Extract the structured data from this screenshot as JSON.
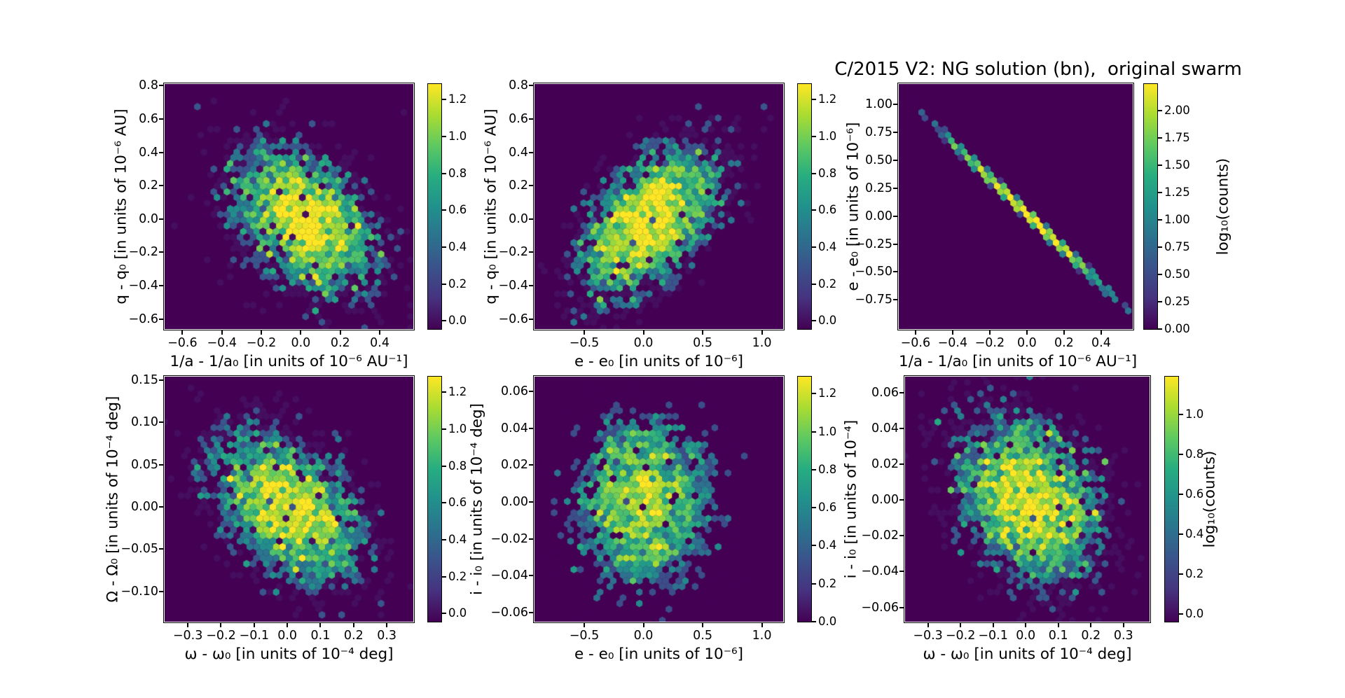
{
  "figure": {
    "title": "C/2015 V2: NG solution (bn),  original swarm",
    "background": "#ffffff",
    "colors": {
      "axes": "#000000",
      "hexbin_zero_background": "#440154",
      "viridis_stops": [
        "#440154",
        "#46327e",
        "#3b528b",
        "#2c728e",
        "#21918c",
        "#27ad81",
        "#5ec962",
        "#aadc32",
        "#fde725"
      ]
    }
  },
  "chart_data": [
    {
      "type": "hexbin",
      "panel": "top-left",
      "title": "",
      "xlabel": "1/a - 1/a₀ [in units of 10⁻⁶ AU⁻¹]",
      "ylabel": "q - q₀ [in units of 10⁻⁶ AU]",
      "xlim": [
        -0.69,
        0.57
      ],
      "ylim": [
        -0.66,
        0.81
      ],
      "xticks": [
        -0.6,
        -0.4,
        -0.2,
        0.0,
        0.2,
        0.4
      ],
      "xtick_labels": [
        "−0.6",
        "−0.4",
        "−0.2",
        "0.0",
        "0.2",
        "0.4"
      ],
      "yticks": [
        0.8,
        0.6,
        0.4,
        0.2,
        0.0,
        -0.2,
        -0.4,
        -0.6
      ],
      "ytick_labels": [
        "0.8",
        "0.6",
        "0.4",
        "0.2",
        "0.0",
        "−0.2",
        "−0.4",
        "−0.6"
      ],
      "colorbar": {
        "ticks": [
          0.0,
          0.2,
          0.4,
          0.6,
          0.8,
          1.0,
          1.2
        ],
        "tick_labels": [
          "0.0",
          "0.2",
          "0.4",
          "0.6",
          "0.8",
          "1.0",
          "1.2"
        ],
        "vmin": -0.045,
        "vmax": 1.285,
        "label": ""
      },
      "distribution": {
        "kind": "gaussian",
        "n": 4200,
        "center": [
          0.02,
          -0.01
        ],
        "sigma": [
          0.185,
          0.225
        ],
        "rho": -0.42,
        "seed": 101
      }
    },
    {
      "type": "hexbin",
      "panel": "top-middle",
      "title": "",
      "xlabel": "e - e₀ [in units of 10⁻⁶]",
      "ylabel": "q - q₀ [in units of 10⁻⁶ AU]",
      "xlim": [
        -0.92,
        1.18
      ],
      "ylim": [
        -0.66,
        0.81
      ],
      "xticks": [
        -0.5,
        0.0,
        0.5,
        1.0
      ],
      "xtick_labels": [
        "−0.5",
        "0.0",
        "0.5",
        "1.0"
      ],
      "yticks": [
        0.8,
        0.6,
        0.4,
        0.2,
        0.0,
        -0.2,
        -0.4,
        -0.6
      ],
      "ytick_labels": [
        "0.8",
        "0.6",
        "0.4",
        "0.2",
        "0.0",
        "−0.2",
        "−0.4",
        "−0.6"
      ],
      "colorbar": {
        "ticks": [
          0.0,
          0.2,
          0.4,
          0.6,
          0.8,
          1.0,
          1.2
        ],
        "tick_labels": [
          "0.0",
          "0.2",
          "0.4",
          "0.6",
          "0.8",
          "1.0",
          "1.2"
        ],
        "vmin": -0.045,
        "vmax": 1.285,
        "label": ""
      },
      "distribution": {
        "kind": "gaussian",
        "n": 4200,
        "center": [
          0.05,
          -0.01
        ],
        "sigma": [
          0.3,
          0.225
        ],
        "rho": 0.5,
        "seed": 202
      }
    },
    {
      "type": "hexbin",
      "panel": "top-right",
      "title": "C/2015 V2: NG solution (bn),  original swarm",
      "xlabel": "1/a - 1/a₀ [in units of 10⁻⁶ AU⁻¹]",
      "ylabel": "e - e₀ [in units of 10⁻⁶]",
      "xlim": [
        -0.69,
        0.57
      ],
      "ylim": [
        -1.01,
        1.18
      ],
      "xticks": [
        -0.6,
        -0.4,
        -0.2,
        0.0,
        0.2,
        0.4
      ],
      "xtick_labels": [
        "−0.6",
        "−0.4",
        "−0.2",
        "0.0",
        "0.2",
        "0.4"
      ],
      "yticks": [
        1.0,
        0.75,
        0.5,
        0.25,
        0.0,
        -0.25,
        -0.5,
        -0.75
      ],
      "ytick_labels": [
        "1.00",
        "0.75",
        "0.50",
        "0.25",
        "0.00",
        "−0.25",
        "−0.50",
        "−0.75"
      ],
      "colorbar": {
        "ticks": [
          0.0,
          0.25,
          0.5,
          0.75,
          1.0,
          1.25,
          1.5,
          1.75,
          2.0
        ],
        "tick_labels": [
          "0.00",
          "0.25",
          "0.50",
          "0.75",
          "1.00",
          "1.25",
          "1.50",
          "1.75",
          "2.00"
        ],
        "vmin": 0.0,
        "vmax": 2.24,
        "label": "log₁₀(counts)"
      },
      "distribution": {
        "kind": "line",
        "n": 4200,
        "center": [
          0.0,
          0.02
        ],
        "sigma": [
          0.195,
          0.012
        ],
        "slope": -1.59,
        "seed": 303
      }
    },
    {
      "type": "hexbin",
      "panel": "bottom-left",
      "title": "",
      "xlabel": "ω - ω₀ [in units of 10⁻⁴ deg]",
      "ylabel": "Ω - Ω₀ [in units of 10⁻⁴ deg]",
      "xlim": [
        -0.37,
        0.38
      ],
      "ylim": [
        -0.136,
        0.154
      ],
      "xticks": [
        -0.3,
        -0.2,
        -0.1,
        0.0,
        0.1,
        0.2,
        0.3
      ],
      "xtick_labels": [
        "−0.3",
        "−0.2",
        "−0.1",
        "0.0",
        "0.1",
        "0.2",
        "0.3"
      ],
      "yticks": [
        0.15,
        0.1,
        0.05,
        0.0,
        -0.05,
        -0.1
      ],
      "ytick_labels": [
        "0.15",
        "0.10",
        "0.05",
        "0.00",
        "−0.05",
        "−0.10"
      ],
      "colorbar": {
        "ticks": [
          0.0,
          0.2,
          0.4,
          0.6,
          0.8,
          1.0,
          1.2
        ],
        "tick_labels": [
          "0.0",
          "0.2",
          "0.4",
          "0.6",
          "0.8",
          "1.0",
          "1.2"
        ],
        "vmin": -0.045,
        "vmax": 1.285,
        "label": ""
      },
      "distribution": {
        "kind": "gaussian",
        "n": 4200,
        "center": [
          0.0,
          0.0
        ],
        "sigma": [
          0.115,
          0.047
        ],
        "rho": -0.42,
        "seed": 404
      }
    },
    {
      "type": "hexbin",
      "panel": "bottom-middle",
      "title": "",
      "xlabel": "e - e₀ [in units of 10⁻⁶]",
      "ylabel": "i - i₀ [in units of 10⁻⁴ deg]",
      "xlim": [
        -0.92,
        1.18
      ],
      "ylim": [
        -0.065,
        0.068
      ],
      "xticks": [
        -0.5,
        0.0,
        0.5,
        1.0
      ],
      "xtick_labels": [
        "−0.5",
        "0.0",
        "0.5",
        "1.0"
      ],
      "yticks": [
        0.06,
        0.04,
        0.02,
        0.0,
        -0.02,
        -0.04,
        -0.06
      ],
      "ytick_labels": [
        "0.06",
        "0.04",
        "0.02",
        "0.00",
        "−0.02",
        "−0.04",
        "−0.06"
      ],
      "colorbar": {
        "ticks": [
          0.0,
          0.2,
          0.4,
          0.6,
          0.8,
          1.0,
          1.2
        ],
        "tick_labels": [
          "0.0",
          "0.2",
          "0.4",
          "0.6",
          "0.8",
          "1.0",
          "1.2"
        ],
        "vmin": 0.0,
        "vmax": 1.29,
        "label": ""
      },
      "distribution": {
        "kind": "gaussian",
        "n": 4200,
        "center": [
          0.0,
          0.0
        ],
        "sigma": [
          0.3,
          0.0245
        ],
        "rho": 0.05,
        "seed": 505
      }
    },
    {
      "type": "hexbin",
      "panel": "bottom-right",
      "title": "",
      "xlabel": "ω - ω₀ [in units of 10⁻⁴ deg]",
      "ylabel": "i - i₀ [in units of 10⁻⁴]",
      "xlim": [
        -0.37,
        0.38
      ],
      "ylim": [
        -0.068,
        0.069
      ],
      "xticks": [
        -0.3,
        -0.2,
        -0.1,
        0.0,
        0.1,
        0.2,
        0.3
      ],
      "xtick_labels": [
        "−0.3",
        "−0.2",
        "−0.1",
        "0.0",
        "0.1",
        "0.2",
        "0.3"
      ],
      "yticks": [
        0.06,
        0.04,
        0.02,
        0.0,
        -0.02,
        -0.04,
        -0.06
      ],
      "ytick_labels": [
        "0.06",
        "0.04",
        "0.02",
        "0.00",
        "−0.02",
        "−0.04",
        "−0.06"
      ],
      "colorbar": {
        "ticks": [
          0.0,
          0.2,
          0.4,
          0.6,
          0.8,
          1.0
        ],
        "tick_labels": [
          "0.0",
          "0.2",
          "0.4",
          "0.6",
          "0.8",
          "1.0"
        ],
        "vmin": -0.04,
        "vmax": 1.19,
        "label": "log₁₀(counts)"
      },
      "distribution": {
        "kind": "gaussian",
        "n": 4200,
        "center": [
          0.01,
          0.0
        ],
        "sigma": [
          0.115,
          0.0245
        ],
        "rho": -0.3,
        "seed": 606
      }
    }
  ]
}
